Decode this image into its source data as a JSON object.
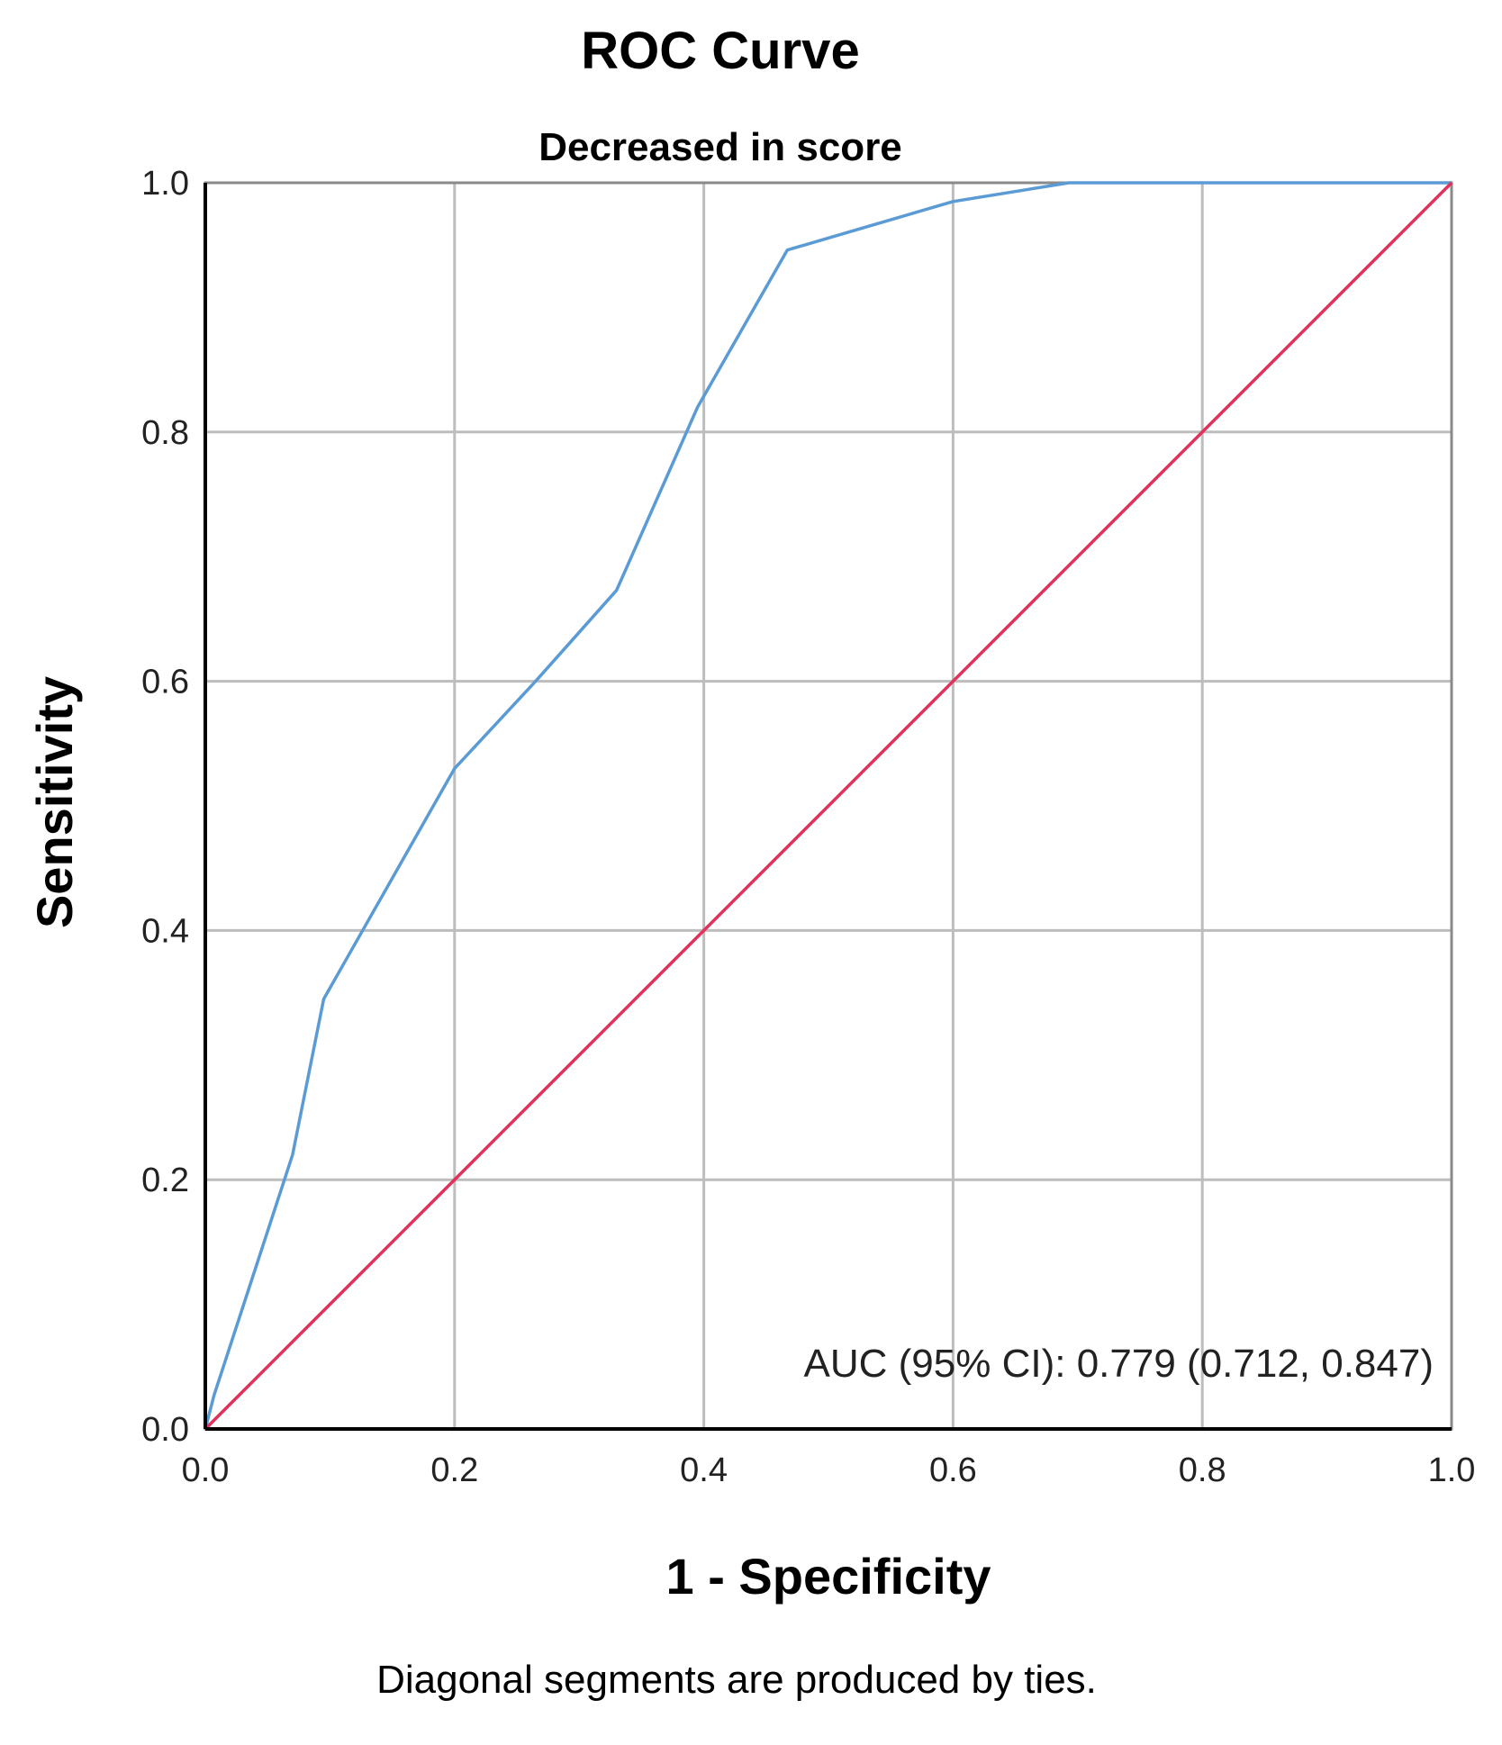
{
  "chart_data": {
    "type": "line",
    "title": "ROC Curve",
    "subtitle": "Decreased in score",
    "xlabel": "1 - Specificity",
    "ylabel": "Sensitivity",
    "xlim": [
      0.0,
      1.0
    ],
    "ylim": [
      0.0,
      1.0
    ],
    "x_ticks": [
      "0.0",
      "0.2",
      "0.4",
      "0.6",
      "0.8",
      "1.0"
    ],
    "y_ticks": [
      "0.0",
      "0.2",
      "0.4",
      "0.6",
      "0.8",
      "1.0"
    ],
    "grid": true,
    "series": [
      {
        "color": "#5b9bd5",
        "x": [
          0.0,
          0.007,
          0.07,
          0.095,
          0.2,
          0.265,
          0.33,
          0.395,
          0.467,
          0.6,
          0.693,
          1.0
        ],
        "y": [
          0.0,
          0.027,
          0.22,
          0.345,
          0.53,
          0.6,
          0.673,
          0.82,
          0.946,
          0.985,
          1.0,
          1.0
        ]
      },
      {
        "color": "#e0325a",
        "x": [
          0.0,
          1.0
        ],
        "y": [
          0.0,
          1.0
        ]
      }
    ],
    "annotation": "AUC (95% CI): 0.779 (0.712, 0.847)",
    "footnote": "Diagonal segments are produced by ties."
  }
}
